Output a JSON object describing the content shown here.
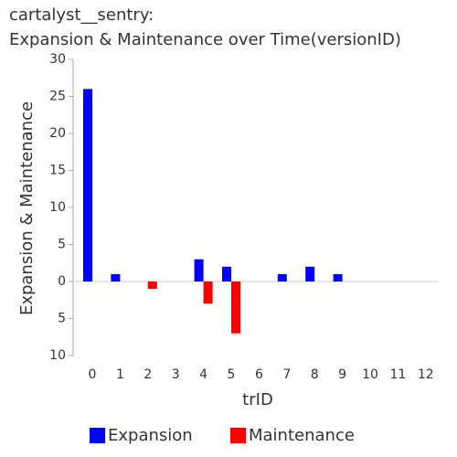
{
  "chart_data": {
    "type": "bar",
    "title": [
      "cartalyst__sentry:",
      "Expansion & Maintenance over Time(versionID)"
    ],
    "x_label": "trID",
    "y_label": "Expansion & Maintenance",
    "categories": [
      "0",
      "1",
      "2",
      "3",
      "4",
      "5",
      "6",
      "7",
      "8",
      "9",
      "10",
      "11",
      "12"
    ],
    "series": [
      {
        "name": "Expansion",
        "color": "#0000ff",
        "values": [
          26,
          1,
          0,
          0,
          3,
          2,
          0,
          1,
          2,
          1,
          0,
          0,
          0
        ]
      },
      {
        "name": "Maintenance",
        "color": "#ff0000",
        "values": [
          0,
          0,
          -1,
          0,
          -3,
          -7,
          0,
          0,
          0,
          0,
          0,
          0,
          0
        ]
      }
    ],
    "ylim": [
      -10,
      30
    ],
    "yticks": [
      {
        "value": -10,
        "label": "10"
      },
      {
        "value": -5,
        "label": "5"
      },
      0,
      5,
      10,
      15,
      20,
      25,
      30
    ]
  }
}
